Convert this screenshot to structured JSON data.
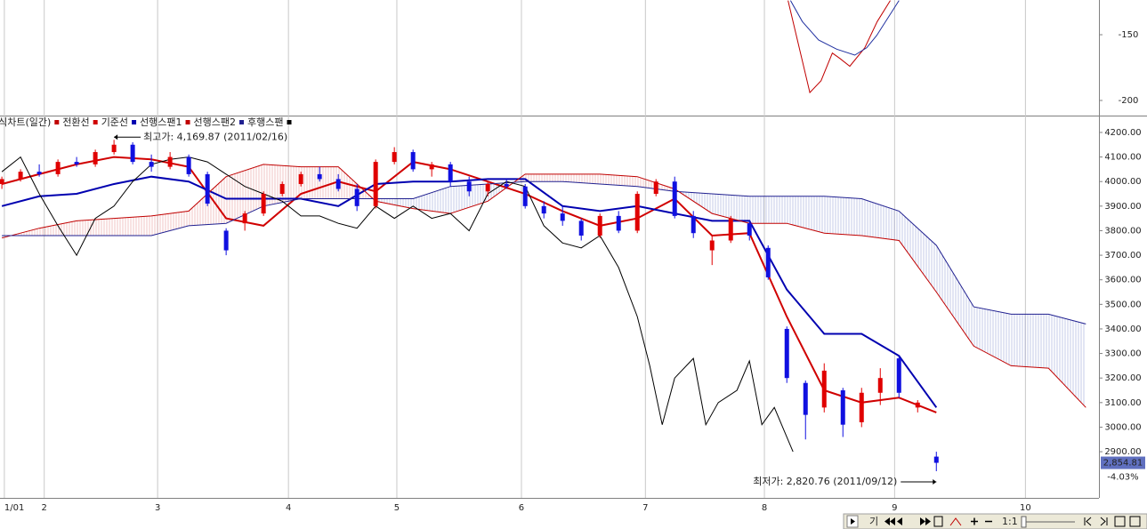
{
  "chart_data": [
    {
      "type": "line",
      "ylim": [
        -211.5,
        -123.6
      ],
      "yticks": [
        -150,
        -200
      ],
      "xlim": [
        -0.3,
        176.1
      ],
      "series": [
        {
          "color": "#c00000",
          "x": [
            126.2,
            127.5,
            129.7,
            131.5,
            133.3,
            134.5,
            136.1,
            138.5,
            140.5,
            142.6
          ],
          "values": [
            -124,
            -150,
            -194,
            -185,
            -164,
            -168,
            -174,
            -160,
            -140,
            -124
          ]
        },
        {
          "color": "#2030a0",
          "x": [
            126.6,
            128.5,
            131.1,
            134,
            136.9,
            138.8,
            140.4,
            144
          ],
          "values": [
            -124,
            -140,
            -154,
            -161,
            -165.5,
            -160,
            -150.7,
            -124
          ]
        }
      ]
    },
    {
      "type": "candlestick",
      "legend_title": "주식차트(일간)",
      "xlim": [
        -0.3,
        176.1
      ],
      "ylim": [
        2712,
        4265
      ],
      "xticks": [
        {
          "value": 0.4,
          "label": "1/01"
        },
        {
          "value": 6.8,
          "label": "2"
        },
        {
          "value": 25,
          "label": "3"
        },
        {
          "value": 46,
          "label": "4"
        },
        {
          "value": 63.4,
          "label": "5"
        },
        {
          "value": 83.4,
          "label": "6"
        },
        {
          "value": 103.3,
          "label": "7"
        },
        {
          "value": 122.4,
          "label": "8"
        },
        {
          "value": 143.3,
          "label": "9"
        },
        {
          "value": 164.3,
          "label": "10"
        }
      ],
      "yticks": [
        {
          "value": 4200,
          "label": "4200.00"
        },
        {
          "value": 4100,
          "label": "4100.00"
        },
        {
          "value": 4000,
          "label": "4000.00"
        },
        {
          "value": 3900,
          "label": "3900.00"
        },
        {
          "value": 3800,
          "label": "3800.00"
        },
        {
          "value": 3700,
          "label": "3700.00"
        },
        {
          "value": 3600,
          "label": "3600.00"
        },
        {
          "value": 3500,
          "label": "3500.00"
        },
        {
          "value": 3400,
          "label": "3400.00"
        },
        {
          "value": 3300,
          "label": "3300.00"
        },
        {
          "value": 3200,
          "label": "3200.00"
        },
        {
          "value": 3100,
          "label": "3100.00"
        },
        {
          "value": 3000,
          "label": "3000.00"
        },
        {
          "value": 2900,
          "label": "2900.00"
        }
      ],
      "grid": true,
      "up_color": "#e00000",
      "down_color": "#1010e0",
      "candles": {
        "x": [
          0,
          3,
          6,
          9,
          12,
          15,
          18,
          21,
          24,
          27,
          30,
          33,
          36,
          39,
          42,
          45,
          48,
          51,
          54,
          57,
          60,
          63,
          66,
          69,
          72,
          75,
          78,
          81,
          84,
          87,
          90,
          93,
          96,
          99,
          102,
          105,
          108,
          111,
          114,
          117,
          120,
          123,
          126,
          129,
          132,
          135,
          138,
          141,
          144,
          147,
          150
        ],
        "open": [
          3990,
          4010,
          4040,
          4030,
          4080,
          4070,
          4120,
          4150,
          4080,
          4060,
          4100,
          4030,
          3800,
          3830,
          3870,
          3950,
          3990,
          4030,
          4010,
          3970,
          3900,
          4080,
          4120,
          4050,
          4070,
          4000,
          3960,
          3990,
          3980,
          3900,
          3870,
          3840,
          3780,
          3860,
          3800,
          3950,
          4000,
          3860,
          3720,
          3760,
          3830,
          3730,
          3400,
          3180,
          3080,
          3150,
          3020,
          3140,
          3280,
          3080,
          2880
        ],
        "high": [
          4020,
          4050,
          4070,
          4090,
          4100,
          4130,
          4169.87,
          4160,
          4110,
          4120,
          4110,
          4040,
          3810,
          3880,
          3960,
          4000,
          4040,
          4060,
          4030,
          3990,
          4090,
          4140,
          4130,
          4080,
          4080,
          4020,
          4000,
          4010,
          3990,
          3920,
          3900,
          3850,
          3870,
          3880,
          3960,
          4010,
          4020,
          3880,
          3780,
          3860,
          3840,
          3740,
          3410,
          3190,
          3260,
          3160,
          3160,
          3240,
          3290,
          3110,
          2900
        ],
        "low": [
          3970,
          4000,
          4020,
          4020,
          4060,
          4060,
          4110,
          4070,
          4040,
          4050,
          4020,
          3900,
          3700,
          3800,
          3860,
          3940,
          3980,
          4000,
          3960,
          3880,
          3890,
          4070,
          4040,
          4020,
          3980,
          3940,
          3940,
          3970,
          3890,
          3850,
          3820,
          3760,
          3770,
          3790,
          3790,
          3940,
          3850,
          3770,
          3660,
          3750,
          3760,
          3600,
          3180,
          2950,
          3060,
          2960,
          3000,
          3090,
          3120,
          3060,
          2820.76
        ],
        "close": [
          4010,
          4040,
          4030,
          4080,
          4070,
          4120,
          4150,
          4080,
          4060,
          4100,
          4030,
          3910,
          3720,
          3870,
          3950,
          3990,
          4030,
          4010,
          3970,
          3900,
          4080,
          4120,
          4050,
          4070,
          4000,
          3960,
          3990,
          3980,
          3900,
          3870,
          3840,
          3780,
          3860,
          3800,
          3950,
          4000,
          3860,
          3790,
          3760,
          3850,
          3780,
          3610,
          3200,
          3050,
          3230,
          3010,
          3140,
          3200,
          3140,
          3100,
          2854.81
        ]
      },
      "series": [
        {
          "name": "전환선",
          "color": "#d00000",
          "width": 2,
          "x": [
            0,
            6,
            12,
            18,
            24,
            30,
            36,
            42,
            48,
            54,
            60,
            66,
            72,
            78,
            84,
            90,
            96,
            102,
            108,
            114,
            120,
            126,
            132,
            138,
            144,
            150
          ],
          "values": [
            3990,
            4030,
            4070,
            4100,
            4090,
            4060,
            3850,
            3820,
            3950,
            4000,
            3960,
            4080,
            4050,
            4000,
            3950,
            3880,
            3820,
            3850,
            3930,
            3780,
            3790,
            3450,
            3150,
            3100,
            3120,
            3060
          ]
        },
        {
          "name": "기준선",
          "color": "#0000b0",
          "width": 2,
          "x": [
            0,
            6,
            12,
            18,
            24,
            30,
            36,
            42,
            48,
            54,
            60,
            66,
            72,
            78,
            84,
            90,
            96,
            102,
            108,
            114,
            120,
            126,
            132,
            138,
            144,
            150
          ],
          "values": [
            3900,
            3940,
            3950,
            3990,
            4020,
            4000,
            3930,
            3930,
            3930,
            3900,
            3990,
            4000,
            4000,
            4010,
            4010,
            3900,
            3880,
            3900,
            3870,
            3840,
            3840,
            3560,
            3380,
            3380,
            3290,
            3080
          ]
        },
        {
          "name": "선행스팬1",
          "color": "#c00000",
          "width": 1,
          "x": [
            0,
            6,
            12,
            18,
            24,
            30,
            36,
            42,
            48,
            54,
            60,
            66,
            72,
            78,
            84,
            90,
            96,
            102,
            108,
            114,
            120,
            126,
            132,
            138,
            144,
            150,
            156,
            162,
            168,
            174
          ],
          "values": [
            3770,
            3810,
            3840,
            3850,
            3860,
            3880,
            4020,
            4070,
            4060,
            4060,
            3920,
            3890,
            3870,
            3920,
            4030,
            4030,
            4030,
            4020,
            3970,
            3870,
            3830,
            3830,
            3790,
            3780,
            3760,
            3550,
            3330,
            3250,
            3240,
            3080
          ]
        },
        {
          "name": "선행스팬2",
          "color": "#202090",
          "width": 1,
          "x": [
            0,
            12,
            24,
            30,
            36,
            42,
            48,
            54,
            60,
            66,
            72,
            78,
            84,
            90,
            96,
            102,
            108,
            114,
            120,
            126,
            132,
            138,
            144,
            150,
            156,
            162,
            168,
            174
          ],
          "values": [
            3780,
            3780,
            3780,
            3820,
            3830,
            3900,
            3930,
            3930,
            3930,
            3930,
            3980,
            3990,
            4000,
            4000,
            3990,
            3980,
            3960,
            3950,
            3940,
            3940,
            3940,
            3930,
            3880,
            3740,
            3490,
            3460,
            3460,
            3420
          ]
        },
        {
          "name": "후행스팬",
          "color": "#000000",
          "width": 1,
          "x": [
            0,
            3,
            6,
            9,
            12,
            15,
            18,
            21,
            24,
            27,
            30,
            33,
            36,
            39,
            42,
            45,
            48,
            51,
            54,
            57,
            60,
            63,
            66,
            69,
            72,
            75,
            78,
            81,
            84,
            87,
            90,
            93,
            96,
            99,
            102,
            104,
            106,
            108,
            111,
            113,
            115,
            118,
            120,
            122,
            124,
            127
          ],
          "values": [
            4040,
            4100,
            3950,
            3820,
            3700,
            3850,
            3900,
            4000,
            4070,
            4090,
            4100,
            4080,
            4030,
            3980,
            3950,
            3920,
            3860,
            3860,
            3830,
            3810,
            3900,
            3850,
            3900,
            3850,
            3870,
            3800,
            3950,
            4000,
            3980,
            3820,
            3750,
            3730,
            3780,
            3650,
            3450,
            3250,
            3010,
            3200,
            3280,
            3010,
            3100,
            3150,
            3270,
            3010,
            3080,
            2900
          ]
        }
      ],
      "annotations": [
        {
          "text": "최고가: 4,169.87 (2011/02/16)",
          "x": 18,
          "value": 4169.87,
          "color": "#c00000",
          "side": "right"
        },
        {
          "text": "최저가: 2,820.76 (2011/09/12)",
          "x": 150,
          "value": 2820.76,
          "color": "#202090",
          "side": "left"
        }
      ],
      "last_price": {
        "value": 2854.81,
        "label": "2,854.81"
      },
      "change_label": "-4.03%"
    }
  ],
  "toolbar": {
    "char_label": "기",
    "ratio_label": "1:1"
  }
}
